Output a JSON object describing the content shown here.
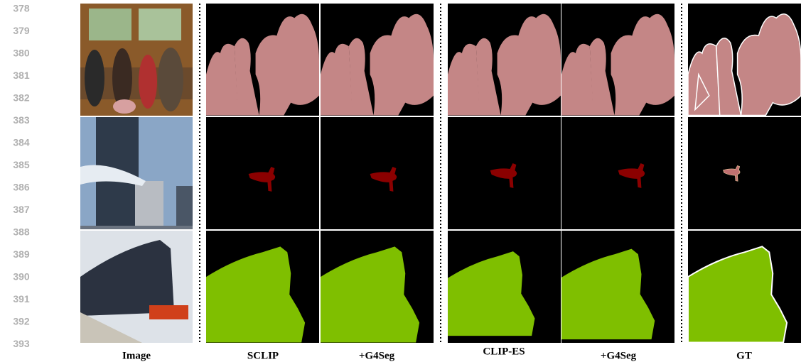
{
  "line_numbers": [
    378,
    379,
    380,
    381,
    382,
    383,
    384,
    385,
    386,
    387,
    388,
    389,
    390,
    391,
    392,
    393
  ],
  "columns": [
    "Image",
    "SCLIP",
    "+G4Seg",
    "CLIP-ES",
    "+G4Seg",
    "GT"
  ]
}
